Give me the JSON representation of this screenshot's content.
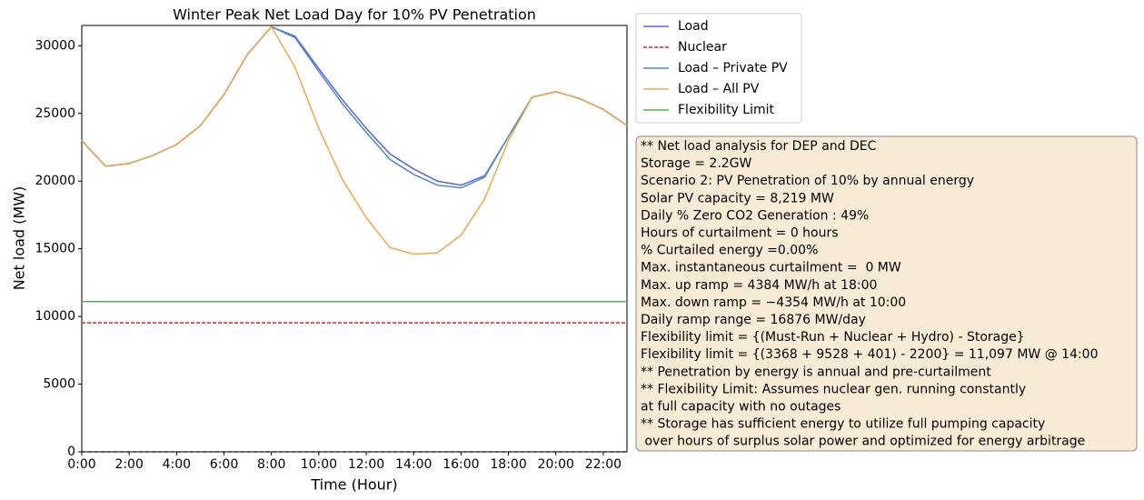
{
  "chart_data": {
    "type": "line",
    "title": "Winter Peak Net Load Day for 10% PV Penetration",
    "x_label": "Time (Hour)",
    "y_label": "Net load (MW)",
    "x": [
      0,
      1,
      2,
      3,
      4,
      5,
      6,
      7,
      8,
      9,
      10,
      11,
      12,
      13,
      14,
      15,
      16,
      17,
      18,
      19,
      20,
      21,
      22,
      23
    ],
    "series": [
      {
        "name": "Load",
        "color": "#5a64e6",
        "linestyle": "solid",
        "values": [
          23000,
          21100,
          21300,
          21900,
          22700,
          24100,
          26400,
          29400,
          31400,
          30700,
          28300,
          26000,
          23900,
          22000,
          20900,
          20000,
          19700,
          20400,
          23300,
          26200,
          26600,
          26100,
          25300,
          24100
        ]
      },
      {
        "name": "Nuclear",
        "color": "#d62728",
        "linestyle": "dashed",
        "values": [
          9528,
          9528,
          9528,
          9528,
          9528,
          9528,
          9528,
          9528,
          9528,
          9528,
          9528,
          9528,
          9528,
          9528,
          9528,
          9528,
          9528,
          9528,
          9528,
          9528,
          9528,
          9528,
          9528,
          9528
        ]
      },
      {
        "name": "Load – Private PV",
        "color": "#4a8cc4",
        "linestyle": "solid",
        "values": [
          23000,
          21100,
          21300,
          21900,
          22700,
          24100,
          26400,
          29400,
          31400,
          30600,
          28100,
          25700,
          23600,
          21600,
          20500,
          19700,
          19500,
          20300,
          23300,
          26200,
          26600,
          26100,
          25300,
          24100
        ]
      },
      {
        "name": "Load – All PV",
        "color": "#f5a54a",
        "linestyle": "solid",
        "values": [
          23000,
          21100,
          21300,
          21900,
          22700,
          24100,
          26400,
          29400,
          31400,
          28400,
          23900,
          20100,
          17300,
          15100,
          14600,
          14700,
          16000,
          18700,
          23000,
          26200,
          26600,
          26100,
          25300,
          24100
        ]
      },
      {
        "name": "Flexibility Limit",
        "color": "#4cb84c",
        "linestyle": "solid",
        "values": [
          11097,
          11097,
          11097,
          11097,
          11097,
          11097,
          11097,
          11097,
          11097,
          11097,
          11097,
          11097,
          11097,
          11097,
          11097,
          11097,
          11097,
          11097,
          11097,
          11097,
          11097,
          11097,
          11097,
          11097
        ]
      }
    ],
    "xlim": [
      0,
      23
    ],
    "xticks": [
      {
        "value": 0,
        "label": "0:00"
      },
      {
        "value": 2,
        "label": "2:00"
      },
      {
        "value": 4,
        "label": "4:00"
      },
      {
        "value": 6,
        "label": "6:00"
      },
      {
        "value": 8,
        "label": "8:00"
      },
      {
        "value": 10,
        "label": "10:00"
      },
      {
        "value": 12,
        "label": "12:00"
      },
      {
        "value": 14,
        "label": "14:00"
      },
      {
        "value": 16,
        "label": "16:00"
      },
      {
        "value": 18,
        "label": "18:00"
      },
      {
        "value": 20,
        "label": "20:00"
      },
      {
        "value": 22,
        "label": "22:00"
      }
    ],
    "ylim": [
      0,
      31500
    ],
    "yticks": [
      0,
      5000,
      10000,
      15000,
      20000,
      25000,
      30000
    ],
    "grid": false,
    "legend": "outside-right",
    "annotation": [
      "** Net load analysis for DEP and DEC",
      "Storage = 2.2GW",
      "Scenario 2: PV Penetration of 10% by annual energy",
      "Solar PV capacity = 8,219 MW",
      "Daily % Zero CO2 Generation : 49%",
      "Hours of curtailment = 0 hours",
      "% Curtailed energy =0.00%",
      "Max. instantaneous curtailment =  0 MW",
      "Max. up ramp = 4384 MW/h at 18:00",
      "Max. down ramp = −4354 MW/h at 10:00",
      "Daily ramp range = 16876 MW/day",
      "Flexibility limit = {(Must-Run + Nuclear + Hydro) - Storage}",
      "Flexibility limit = {(3368 + 9528 + 401) - 2200} = 11,097 MW @ 14:00",
      "** Penetration by energy is annual and pre-curtailment",
      "** Flexibility Limit: Assumes nuclear gen. running constantly",
      "at full capacity with no outages",
      "** Storage has sufficient energy to utilize full pumping capacity",
      " over hours of surplus solar power and optimized for energy arbitrage"
    ]
  }
}
